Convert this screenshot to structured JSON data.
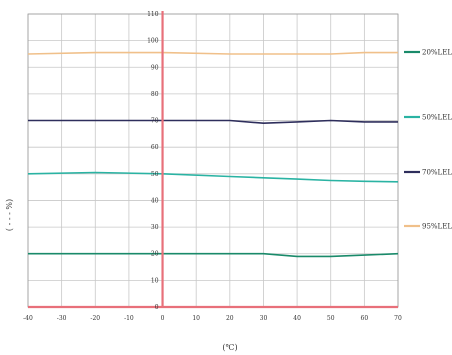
{
  "chart_data": {
    "type": "line",
    "title": "",
    "xlabel": "(℃)",
    "ylabel": "( ‐ ‐ ‐ %)",
    "xlim": [
      -40,
      70
    ],
    "ylim": [
      0,
      110
    ],
    "xticks": [
      "-40",
      "-30",
      "-20",
      "-10",
      "0",
      "10",
      "20",
      "30",
      "40",
      "50",
      "60",
      "70"
    ],
    "yticks": [
      "0",
      "10",
      "20",
      "30",
      "40",
      "50",
      "60",
      "70",
      "80",
      "90",
      "100",
      "110"
    ],
    "grid": true,
    "legend_position": "right",
    "series": [
      {
        "name": "20%LEL",
        "color": "#1a8a6a",
        "x": [
          -40,
          -20,
          0,
          20,
          30,
          40,
          50,
          60,
          70
        ],
        "y": [
          20,
          20,
          20,
          20,
          20,
          19,
          19,
          19.5,
          20
        ]
      },
      {
        "name": "50%LEL",
        "color": "#2ab3a3",
        "x": [
          -40,
          -20,
          0,
          20,
          30,
          40,
          50,
          60,
          70
        ],
        "y": [
          50,
          50.5,
          50,
          49,
          48.5,
          48,
          47.5,
          47.2,
          47
        ]
      },
      {
        "name": "70%LEL",
        "color": "#2e2e5c",
        "x": [
          -40,
          -20,
          0,
          20,
          30,
          40,
          50,
          60,
          70
        ],
        "y": [
          70,
          70,
          70,
          70,
          69,
          69.5,
          70,
          69.5,
          69.5
        ]
      },
      {
        "name": "95%LEL",
        "color": "#f0c08a",
        "x": [
          -40,
          -20,
          0,
          20,
          30,
          40,
          50,
          60,
          70
        ],
        "y": [
          95,
          95.5,
          95.5,
          95,
          95,
          95,
          95,
          95.5,
          95.5
        ]
      }
    ]
  },
  "colors": {
    "grid": "#c8c8c8",
    "zero_axis": "#e8707a",
    "frame": "#999999"
  }
}
